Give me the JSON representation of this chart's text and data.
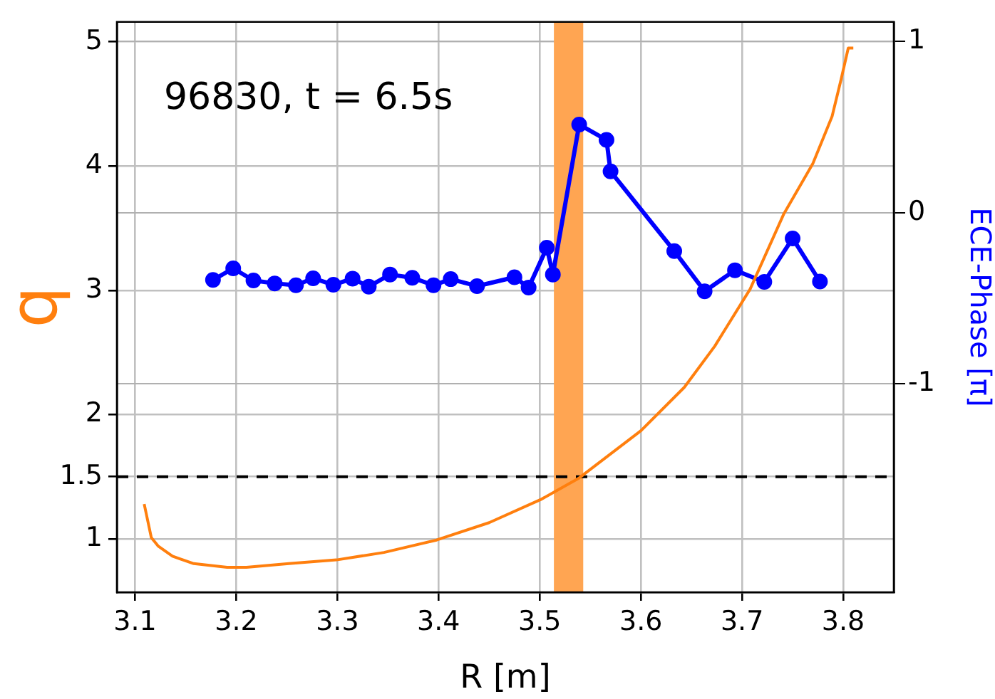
{
  "chart_data": {
    "type": "line",
    "xlabel": "R [m]",
    "ylabel": "q",
    "y2label": "ECE-Phase [π]",
    "annotations": [
      "96830, t = 6.5s"
    ],
    "xlim": [
      3.082,
      3.85
    ],
    "xticks": [
      3.1,
      3.2,
      3.3,
      3.4,
      3.5,
      3.6,
      3.7,
      3.8
    ],
    "ylim": [
      0.57,
      5.16
    ],
    "yticks": [
      1,
      1.5,
      2,
      3,
      4,
      5
    ],
    "y2lim": [
      -2.22,
      1.115
    ],
    "y2ticks": [
      -1,
      0,
      1
    ],
    "grid": true,
    "legend": false,
    "ref_lines": [
      {
        "axis": "y",
        "value": 1.5,
        "color": "#000000",
        "line_style": "dashed"
      }
    ],
    "bands": [
      {
        "axis": "x",
        "from": 3.514,
        "to": 3.543,
        "color": "#ffa552"
      }
    ],
    "series": [
      {
        "color": "#ff7f0e",
        "marker": "none",
        "line_style": "solid",
        "x": [
          3.109,
          3.116,
          3.123,
          3.137,
          3.158,
          3.191,
          3.21,
          3.252,
          3.299,
          3.346,
          3.398,
          3.45,
          3.502,
          3.539,
          3.6,
          3.643,
          3.673,
          3.708,
          3.741,
          3.77,
          3.789,
          3.798,
          3.805,
          3.81
        ],
        "values": [
          1.28,
          1.01,
          0.94,
          0.86,
          0.8,
          0.77,
          0.77,
          0.8,
          0.83,
          0.89,
          0.99,
          1.13,
          1.32,
          1.49,
          1.87,
          2.22,
          2.55,
          3.01,
          3.61,
          4.02,
          4.4,
          4.7,
          4.95,
          4.95
        ]
      },
      {
        "color": "#0000ff",
        "axis": "y2",
        "marker": "circle",
        "line_style": "solid",
        "x": [
          3.177,
          3.197,
          3.217,
          3.238,
          3.259,
          3.276,
          3.296,
          3.315,
          3.331,
          3.352,
          3.374,
          3.395,
          3.412,
          3.438,
          3.475,
          3.489,
          3.507,
          3.513,
          3.539,
          3.566,
          3.57,
          3.633,
          3.663,
          3.693,
          3.722,
          3.75,
          3.777
        ],
        "values": [
          -0.394,
          -0.326,
          -0.397,
          -0.414,
          -0.425,
          -0.384,
          -0.422,
          -0.386,
          -0.433,
          -0.362,
          -0.381,
          -0.425,
          -0.389,
          -0.43,
          -0.378,
          -0.438,
          -0.205,
          -0.362,
          0.515,
          0.425,
          0.241,
          -0.225,
          -0.46,
          -0.337,
          -0.405,
          -0.151,
          -0.403
        ]
      }
    ]
  }
}
